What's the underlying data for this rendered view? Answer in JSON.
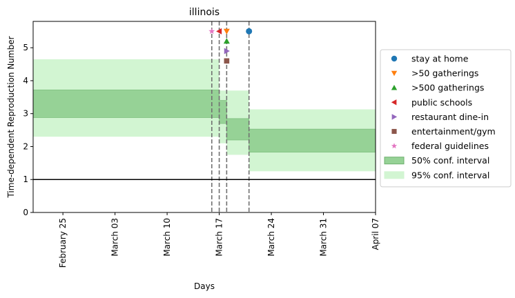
{
  "chart_data": {
    "type": "area",
    "title": "illinois",
    "xlabel": "Days",
    "ylabel": "Time-dependent Reproduction Number",
    "x_ticks": [
      {
        "date": "2020-02-25",
        "label": "February 25"
      },
      {
        "date": "2020-03-03",
        "label": "March 03"
      },
      {
        "date": "2020-03-10",
        "label": "March 10"
      },
      {
        "date": "2020-03-17",
        "label": "March 17"
      },
      {
        "date": "2020-03-24",
        "label": "March 24"
      },
      {
        "date": "2020-03-31",
        "label": "March 31"
      },
      {
        "date": "2020-04-07",
        "label": "April 07"
      }
    ],
    "y_ticks": [
      0,
      1,
      2,
      3,
      4,
      5
    ],
    "xlim": [
      "2020-02-21",
      "2020-04-07"
    ],
    "ylim": [
      0,
      5.8
    ],
    "grid": false,
    "legend_position": "right",
    "reference_line": {
      "y": 1,
      "color": "#000000"
    },
    "intervals": [
      {
        "start": "2020-02-21",
        "end": "2020-03-17",
        "ci50": [
          2.88,
          3.72
        ],
        "ci95": [
          2.3,
          4.65
        ]
      },
      {
        "start": "2020-03-17",
        "end": "2020-03-18",
        "ci50": [
          2.7,
          3.4
        ],
        "ci95": [
          2.1,
          3.7
        ]
      },
      {
        "start": "2020-03-18",
        "end": "2020-03-21",
        "ci50": [
          2.2,
          2.85
        ],
        "ci95": [
          1.75,
          3.7
        ]
      },
      {
        "start": "2020-03-21",
        "end": "2020-04-07",
        "ci50": [
          1.83,
          2.53
        ],
        "ci95": [
          1.25,
          3.13
        ]
      }
    ],
    "interventions": [
      {
        "name": "stay at home",
        "date": "2020-03-21",
        "y": 5.5,
        "marker": "circle",
        "color": "#1f77b4"
      },
      {
        "name": ">50 gatherings",
        "date": "2020-03-18",
        "y": 5.5,
        "marker": "triangle-down",
        "color": "#ff7f0e"
      },
      {
        "name": ">500 gatherings",
        "date": "2020-03-18",
        "y": 5.2,
        "marker": "triangle-up",
        "color": "#2ca02c"
      },
      {
        "name": "public schools",
        "date": "2020-03-17",
        "y": 5.5,
        "marker": "triangle-left",
        "color": "#d62728"
      },
      {
        "name": "restaurant dine-in",
        "date": "2020-03-18",
        "y": 4.9,
        "marker": "triangle-right",
        "color": "#9467bd"
      },
      {
        "name": "entertainment/gym",
        "date": "2020-03-18",
        "y": 4.6,
        "marker": "square",
        "color": "#8c564b"
      },
      {
        "name": "federal guidelines",
        "date": "2020-03-16",
        "y": 5.5,
        "marker": "star",
        "color": "#e377c2"
      }
    ],
    "intervention_lines": [
      "2020-03-16",
      "2020-03-17",
      "2020-03-18",
      "2020-03-21"
    ],
    "legend": [
      {
        "label": "stay at home",
        "marker": "circle",
        "color": "#1f77b4"
      },
      {
        "label": ">50 gatherings",
        "marker": "triangle-down",
        "color": "#ff7f0e"
      },
      {
        "label": ">500 gatherings",
        "marker": "triangle-up",
        "color": "#2ca02c"
      },
      {
        "label": "public schools",
        "marker": "triangle-left",
        "color": "#d62728"
      },
      {
        "label": "restaurant dine-in",
        "marker": "triangle-right",
        "color": "#9467bd"
      },
      {
        "label": "entertainment/gym",
        "marker": "square",
        "color": "#8c564b"
      },
      {
        "label": "federal guidelines",
        "marker": "star",
        "color": "#e377c2"
      },
      {
        "label": "50% conf. interval",
        "marker": "patch",
        "color": "#96d296",
        "edge": "#6fb06f"
      },
      {
        "label": "95% conf. interval",
        "marker": "patch",
        "color": "#d2f5d2",
        "edge": "#d2f5d2"
      }
    ],
    "colors": {
      "ci50": "#96d296",
      "ci95": "#d2f5d2",
      "intervention_line": "#707070"
    }
  }
}
